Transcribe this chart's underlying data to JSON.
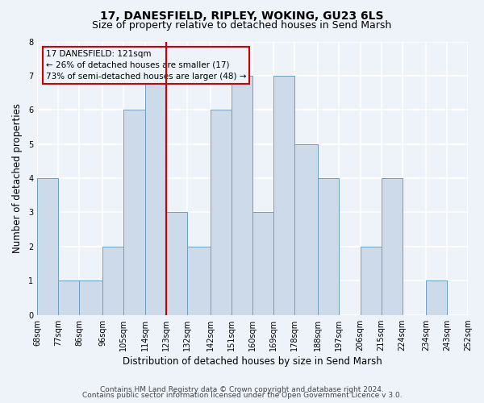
{
  "title": "17, DANESFIELD, RIPLEY, WOKING, GU23 6LS",
  "subtitle": "Size of property relative to detached houses in Send Marsh",
  "xlabel": "Distribution of detached houses by size in Send Marsh",
  "ylabel": "Number of detached properties",
  "bin_edges": [
    68,
    77,
    86,
    96,
    105,
    114,
    123,
    132,
    142,
    151,
    160,
    169,
    178,
    188,
    197,
    206,
    215,
    224,
    234,
    243,
    252
  ],
  "bar_heights": [
    4,
    1,
    1,
    2,
    6,
    7,
    3,
    2,
    6,
    7,
    3,
    7,
    5,
    4,
    0,
    2,
    4,
    0,
    1,
    0
  ],
  "bar_color": "#ccdaea",
  "bar_edgecolor": "#6a9ec0",
  "property_line_x": 123,
  "property_line_color": "#cc0000",
  "annotation_line1": "17 DANESFIELD: 121sqm",
  "annotation_line2": "← 26% of detached houses are smaller (17)",
  "annotation_line3": "73% of semi-detached houses are larger (48) →",
  "ylim": [
    0,
    8
  ],
  "yticks": [
    0,
    1,
    2,
    3,
    4,
    5,
    6,
    7,
    8
  ],
  "tick_labels": [
    "68sqm",
    "77sqm",
    "86sqm",
    "96sqm",
    "105sqm",
    "114sqm",
    "123sqm",
    "132sqm",
    "142sqm",
    "151sqm",
    "160sqm",
    "169sqm",
    "178sqm",
    "188sqm",
    "197sqm",
    "206sqm",
    "215sqm",
    "224sqm",
    "234sqm",
    "243sqm",
    "252sqm"
  ],
  "footer_line1": "Contains HM Land Registry data © Crown copyright and database right 2024.",
  "footer_line2": "Contains public sector information licensed under the Open Government Licence v 3.0.",
  "background_color": "#eef2f9",
  "grid_color": "#ffffff",
  "title_fontsize": 10,
  "subtitle_fontsize": 9,
  "axis_label_fontsize": 8.5,
  "tick_fontsize": 7,
  "annotation_fontsize": 7.5,
  "footer_fontsize": 6.5
}
